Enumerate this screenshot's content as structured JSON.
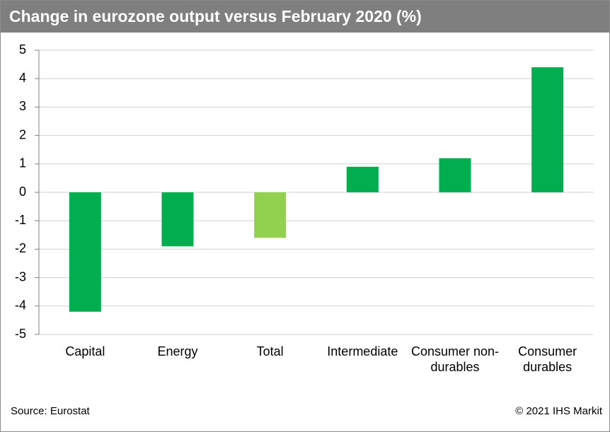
{
  "chart_data": {
    "type": "bar",
    "title": "Change in eurozone output versus February 2020 (%)",
    "categories": [
      "Capital",
      "Energy",
      "Total",
      "Intermediate",
      "Consumer non-durables",
      "Consumer durables"
    ],
    "values": [
      -4.2,
      -1.9,
      -1.6,
      0.9,
      1.2,
      4.4
    ],
    "colors": [
      "#00ad4f",
      "#00ad4f",
      "#92d050",
      "#00ad4f",
      "#00ad4f",
      "#00ad4f"
    ],
    "ylim": [
      -5,
      5
    ],
    "yticks": [
      -5,
      -4,
      -3,
      -2,
      -1,
      0,
      1,
      2,
      3,
      4,
      5
    ],
    "grid": true,
    "source": "Source: Eurostat",
    "copyright": "© 2021 IHS Markit"
  }
}
